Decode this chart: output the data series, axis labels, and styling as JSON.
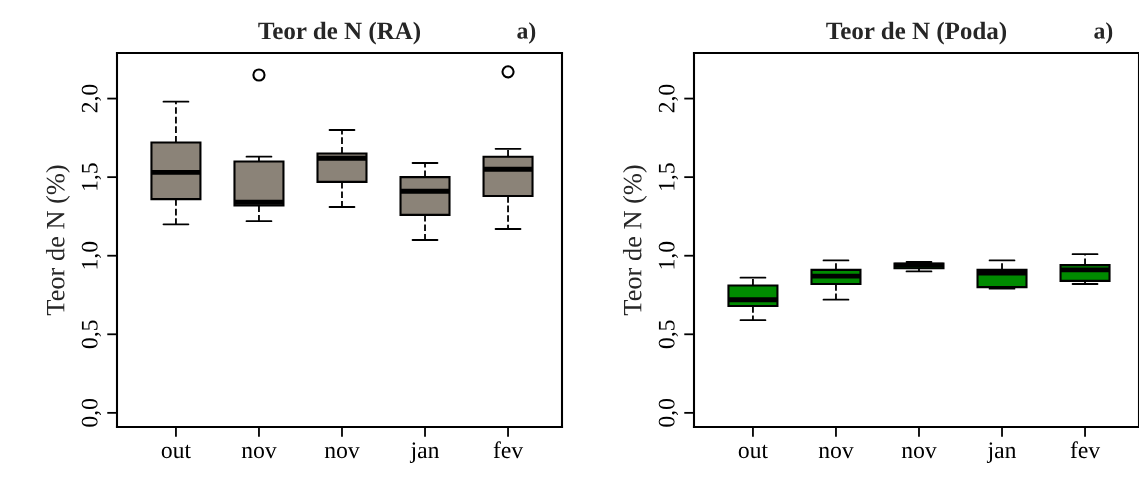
{
  "chart_data": [
    {
      "type": "box",
      "title": "Teor de N (RA)",
      "ylabel": "Teor de N (%)",
      "annotations": [
        "a)"
      ],
      "categories": [
        "out",
        "nov",
        "nov",
        "jan",
        "fev"
      ],
      "color": "#8b8378",
      "line_style": "dashed",
      "grid": false,
      "legend": false,
      "ylim": [
        -0.09,
        2.29
      ],
      "yticks": [
        {
          "value": 0,
          "label": "0,0"
        },
        {
          "value": 0.5,
          "label": "0,5"
        },
        {
          "value": 1,
          "label": "1,0"
        },
        {
          "value": 1.5,
          "label": "1,5"
        },
        {
          "value": 2,
          "label": "2,0"
        }
      ],
      "boxes": [
        {
          "low": 1.2,
          "q1": 1.36,
          "median": 1.53,
          "q3": 1.72,
          "high": 1.98
        },
        {
          "low": 1.22,
          "q1": 1.32,
          "median": 1.34,
          "q3": 1.6,
          "high": 1.63,
          "outliers": [
            2.15
          ]
        },
        {
          "low": 1.31,
          "q1": 1.47,
          "median": 1.62,
          "q3": 1.65,
          "high": 1.8
        },
        {
          "low": 1.1,
          "q1": 1.26,
          "median": 1.41,
          "q3": 1.5,
          "high": 1.59
        },
        {
          "low": 1.17,
          "q1": 1.38,
          "median": 1.55,
          "q3": 1.63,
          "high": 1.68,
          "outliers": [
            2.17
          ]
        }
      ]
    },
    {
      "type": "box",
      "title": "Teor de N (Poda)",
      "ylabel": "Teor de N (%)",
      "annotations": [
        "a)"
      ],
      "categories": [
        "out",
        "nov",
        "nov",
        "jan",
        "fev"
      ],
      "color": "#008b00",
      "line_style": "dashed",
      "grid": false,
      "legend": false,
      "ylim": [
        -0.09,
        2.29
      ],
      "yticks": [
        {
          "value": 0,
          "label": "0,0"
        },
        {
          "value": 0.5,
          "label": "0,5"
        },
        {
          "value": 1,
          "label": "1,0"
        },
        {
          "value": 1.5,
          "label": "1,5"
        },
        {
          "value": 2,
          "label": "2,0"
        }
      ],
      "boxes": [
        {
          "low": 0.59,
          "q1": 0.68,
          "median": 0.72,
          "q3": 0.81,
          "high": 0.86
        },
        {
          "low": 0.72,
          "q1": 0.82,
          "median": 0.87,
          "q3": 0.91,
          "high": 0.97
        },
        {
          "low": 0.9,
          "q1": 0.92,
          "median": 0.94,
          "q3": 0.95,
          "high": 0.96
        },
        {
          "low": 0.79,
          "q1": 0.8,
          "median": 0.89,
          "q3": 0.91,
          "high": 0.97
        },
        {
          "low": 0.82,
          "q1": 0.84,
          "median": 0.91,
          "q3": 0.94,
          "high": 1.01
        }
      ]
    }
  ]
}
